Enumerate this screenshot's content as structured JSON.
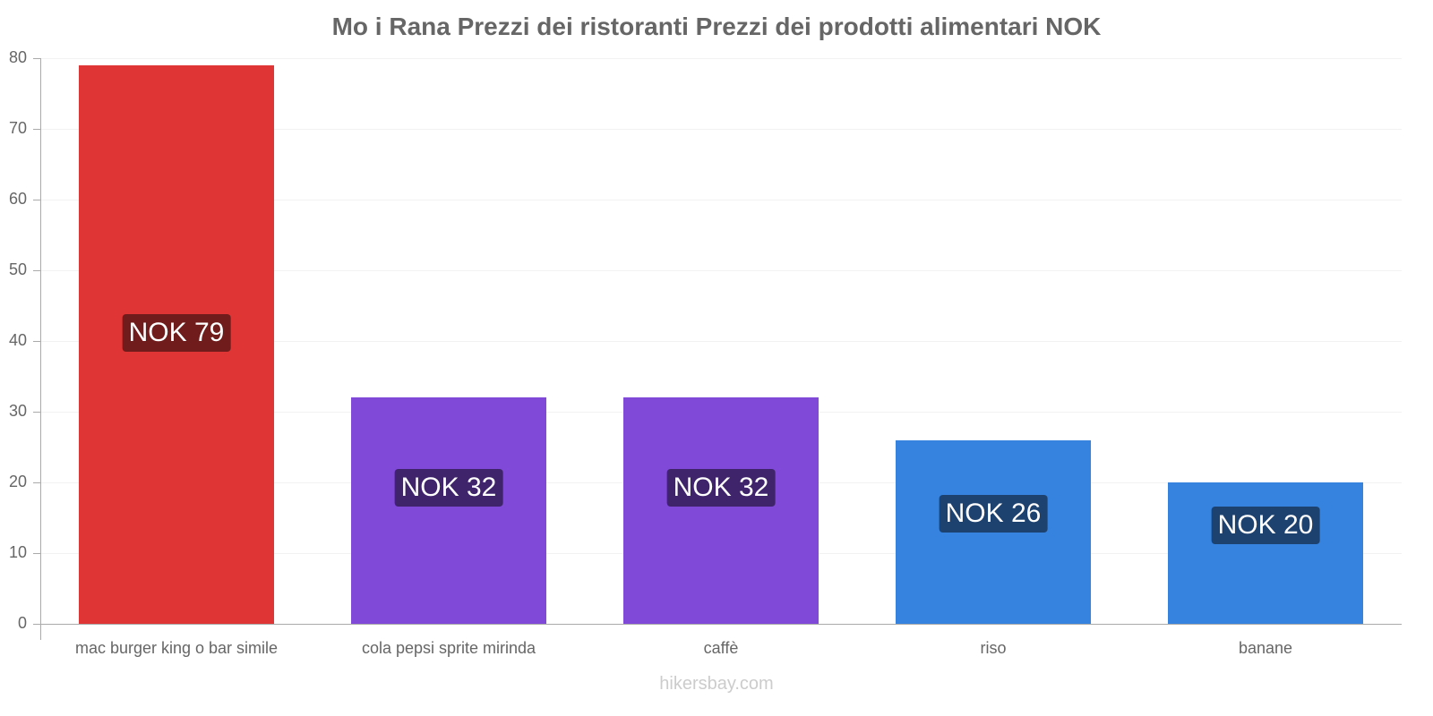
{
  "chart_data": {
    "type": "bar",
    "title": "Mo i Rana Prezzi dei ristoranti Prezzi dei prodotti alimentari NOK",
    "xlabel": "",
    "ylabel": "",
    "ylim": [
      0,
      80
    ],
    "yticks": [
      0,
      10,
      20,
      30,
      40,
      50,
      60,
      70,
      80
    ],
    "grid": true,
    "legend": null,
    "categories": [
      "mac burger king o bar simile",
      "cola pepsi sprite mirinda",
      "caffè",
      "riso",
      "banane"
    ],
    "values": [
      79,
      32,
      32,
      26,
      20
    ],
    "value_labels": [
      "NOK 79",
      "NOK 32",
      "NOK 32",
      "NOK 26",
      "NOK 20"
    ],
    "bar_colors": [
      "#e03535",
      "#8049d8",
      "#8049d8",
      "#3583de",
      "#3583de"
    ],
    "label_bg_colors": [
      "#701c1c",
      "#3f246c",
      "#3f246c",
      "#1e426f",
      "#1e426f"
    ]
  },
  "footer": {
    "watermark": "hikersbay.com"
  }
}
